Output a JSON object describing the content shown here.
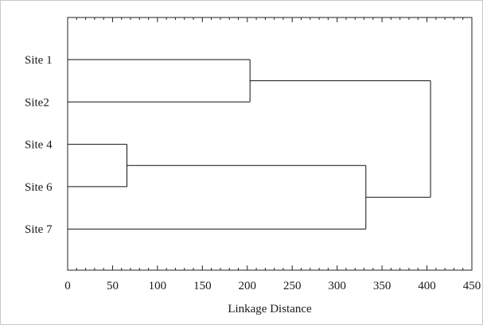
{
  "chart_data": {
    "type": "dendrogram",
    "title": "",
    "xlabel": "Linkage Distance",
    "ylabel": "",
    "xlim": [
      0,
      450
    ],
    "xticks": [
      0,
      50,
      100,
      150,
      200,
      250,
      300,
      350,
      400,
      450
    ],
    "minor_tick_step": 10,
    "grid": false,
    "leaves": [
      "Site 1",
      "Site2",
      "Site 4",
      "Site 6",
      "Site 7"
    ],
    "merges": [
      {
        "children": [
          "Site 4",
          "Site 6"
        ],
        "distance": 66
      },
      {
        "children": [
          "Site 1",
          "Site2"
        ],
        "distance": 203
      },
      {
        "children": [
          "[Site 4, Site 6]",
          "Site 7"
        ],
        "distance": 332
      },
      {
        "children": [
          "[Site 1, Site2]",
          "[Site 4, Site 6, Site 7]"
        ],
        "distance": 404
      }
    ]
  }
}
